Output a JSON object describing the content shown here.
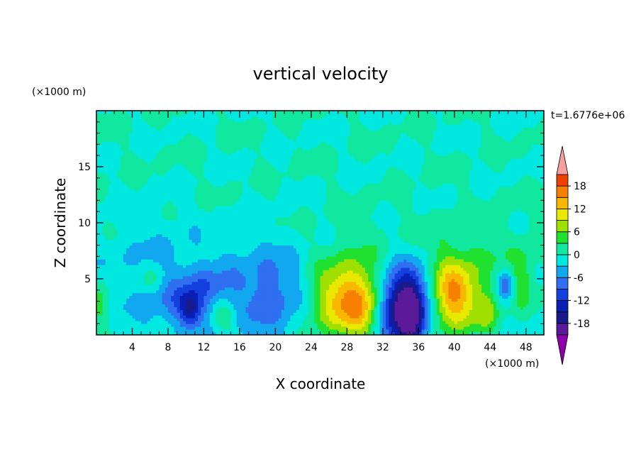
{
  "chart_data": {
    "type": "contour",
    "title": "vertical velocity",
    "xlabel": "X coordinate",
    "ylabel": "Z coordinate",
    "x_unit": "(×1000 m)",
    "y_unit": "(×1000 m)",
    "time_label": "t=1.6776e+06",
    "xlim": [
      0,
      50
    ],
    "ylim": [
      0,
      20
    ],
    "x_ticks": [
      "4",
      "8",
      "12",
      "16",
      "20",
      "24",
      "28",
      "32",
      "36",
      "40",
      "44",
      "48"
    ],
    "x_tick_values": [
      4,
      8,
      12,
      16,
      20,
      24,
      28,
      32,
      36,
      40,
      44,
      48
    ],
    "y_ticks": [
      "5",
      "10",
      "15"
    ],
    "y_tick_values": [
      5,
      10,
      15
    ],
    "colorbar": {
      "levels": [
        -21,
        -18,
        -15,
        -12,
        -9,
        -6,
        -3,
        0,
        3,
        6,
        9,
        12,
        15,
        18,
        21
      ],
      "tick_labels": [
        "18",
        "12",
        "6",
        "0",
        "-6",
        "-12",
        "-18"
      ],
      "tick_values": [
        18,
        12,
        6,
        0,
        -6,
        -12,
        -18
      ],
      "colors": [
        "#5a1a9a",
        "#1a1a8c",
        "#0a1fb4",
        "#1540e0",
        "#2f6ff0",
        "#12a8f0",
        "#00e8e0",
        "#10e8a0",
        "#20e030",
        "#a0e000",
        "#e8e800",
        "#f8b800",
        "#f88000",
        "#f04000",
        "#e01010"
      ],
      "over_color": "#f4a0a0",
      "under_color": "#9000a8"
    },
    "features": [
      {
        "x": 27,
        "z": 2.8,
        "value": 8,
        "sx": 2.0,
        "sz": 2.2
      },
      {
        "x": 29.8,
        "z": 2.8,
        "value": 11,
        "sx": 1.6,
        "sz": 2.4
      },
      {
        "x": 26.5,
        "z": 3.8,
        "value": 5,
        "sx": 3.0,
        "sz": 2.8
      },
      {
        "x": 33.5,
        "z": 2.4,
        "value": -11,
        "sx": 1.6,
        "sz": 2.2
      },
      {
        "x": 35.3,
        "z": 2.0,
        "value": -15,
        "sx": 1.2,
        "sz": 2.5
      },
      {
        "x": 34.5,
        "z": 3.5,
        "value": -6,
        "sx": 2.6,
        "sz": 2.6
      },
      {
        "x": 39.8,
        "z": 3.3,
        "value": 11,
        "sx": 1.6,
        "sz": 2.0
      },
      {
        "x": 40.5,
        "z": 3.8,
        "value": 5,
        "sx": 2.8,
        "sz": 3.0
      },
      {
        "x": 43.6,
        "z": 2.0,
        "value": 5,
        "sx": 0.9,
        "sz": 1.3
      },
      {
        "x": 45.8,
        "z": 4.5,
        "value": -9,
        "sx": 0.7,
        "sz": 1.0
      },
      {
        "x": 47.5,
        "z": 5.0,
        "value": 5,
        "sx": 0.8,
        "sz": 1.8
      },
      {
        "x": 0.5,
        "z": 2.5,
        "value": 5,
        "sx": 0.8,
        "sz": 2.0
      },
      {
        "x": 6.3,
        "z": 5.0,
        "value": 4,
        "sx": 1.2,
        "sz": 0.9
      },
      {
        "x": 10.5,
        "z": 2.3,
        "value": -10,
        "sx": 0.9,
        "sz": 1.1
      },
      {
        "x": 9.5,
        "z": 3.0,
        "value": -5,
        "sx": 2.8,
        "sz": 1.8
      },
      {
        "x": 14.2,
        "z": 1.5,
        "value": 5,
        "sx": 0.9,
        "sz": 0.9
      },
      {
        "x": 12.5,
        "z": 4.5,
        "value": -4,
        "sx": 1.5,
        "sz": 1.0
      },
      {
        "x": 20,
        "z": 5.0,
        "value": -4,
        "sx": 4.0,
        "sz": 2.8
      },
      {
        "x": 19.5,
        "z": 3.0,
        "value": -4,
        "sx": 2.5,
        "sz": 2.5
      },
      {
        "x": 7,
        "z": 6.5,
        "value": -3,
        "sx": 6.0,
        "sz": 3.0
      },
      {
        "x": 40,
        "z": 6.0,
        "value": 2,
        "sx": 8.0,
        "sz": 3.0
      }
    ]
  }
}
